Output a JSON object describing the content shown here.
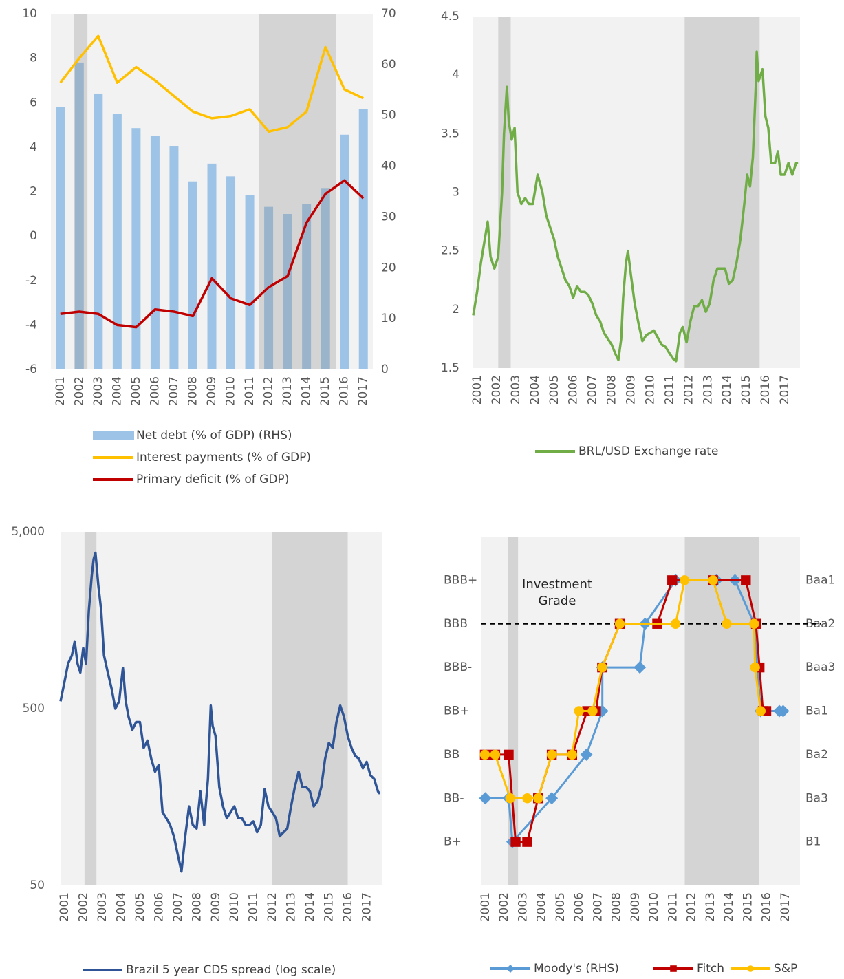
{
  "chart_data": [
    {
      "type": "combo",
      "categories": [
        "2001",
        "2002",
        "2003",
        "2004",
        "2005",
        "2006",
        "2007",
        "2008",
        "2009",
        "2010",
        "2011",
        "2012",
        "2013",
        "2014",
        "2015",
        "2016",
        "2017"
      ],
      "series": [
        {
          "name": "Net debt (% of GDP) (RHS)",
          "type": "bar",
          "axis": "y2",
          "color": "#9dc3e6",
          "values": [
            51.6,
            60.4,
            54.3,
            50.3,
            47.5,
            46,
            44,
            37,
            40.5,
            38,
            34.3,
            32,
            30.6,
            32.6,
            35.7,
            46.2,
            51.2
          ]
        },
        {
          "name": "Interest payments (% of GDP)",
          "type": "line",
          "color": "#ffc000",
          "values": [
            6.9,
            8.0,
            9.0,
            6.9,
            7.6,
            7.0,
            6.3,
            5.6,
            5.3,
            5.4,
            5.7,
            4.7,
            4.9,
            5.6,
            8.5,
            6.6,
            6.2
          ]
        },
        {
          "name": "Primary deficit (% of GDP)",
          "type": "line",
          "color": "#c00000",
          "values": [
            -3.5,
            -3.4,
            -3.5,
            -4.0,
            -4.1,
            -3.3,
            -3.4,
            -3.6,
            -1.9,
            -2.8,
            -3.1,
            -2.3,
            -1.8,
            0.6,
            1.9,
            2.5,
            1.7
          ]
        }
      ],
      "ylim": [
        -6,
        10
      ],
      "yticks": [
        -6,
        -4,
        -2,
        0,
        2,
        4,
        6,
        8,
        10
      ],
      "y2lim": [
        0,
        70
      ],
      "y2ticks": [
        0,
        10,
        20,
        30,
        40,
        50,
        60,
        70
      ],
      "shaded": [
        [
          2001.7,
          2002.43
        ],
        [
          2011.5,
          2015.55
        ]
      ]
    },
    {
      "type": "line",
      "x": [
        2001,
        2001.2,
        2001.4,
        2001.6,
        2001.75,
        2001.9,
        2002.1,
        2002.3,
        2002.5,
        2002.6,
        2002.75,
        2002.85,
        2003,
        2003.15,
        2003.3,
        2003.5,
        2003.7,
        2003.9,
        2004.1,
        2004.35,
        2004.6,
        2004.8,
        2005,
        2005.2,
        2005.4,
        2005.6,
        2005.8,
        2006,
        2006.2,
        2006.4,
        2006.6,
        2006.8,
        2007,
        2007.2,
        2007.4,
        2007.6,
        2007.8,
        2008,
        2008.2,
        2008.4,
        2008.55,
        2008.7,
        2008.8,
        2008.95,
        2009.05,
        2009.2,
        2009.4,
        2009.6,
        2009.8,
        2010,
        2010.2,
        2010.4,
        2010.6,
        2010.8,
        2011,
        2011.2,
        2011.4,
        2011.55,
        2011.75,
        2011.9,
        2012.1,
        2012.3,
        2012.5,
        2012.7,
        2012.9,
        2013.1,
        2013.3,
        2013.5,
        2013.7,
        2013.9,
        2014.1,
        2014.3,
        2014.5,
        2014.7,
        2014.9,
        2015.1,
        2015.25,
        2015.4,
        2015.55,
        2015.7,
        2015.75,
        2015.85,
        2015.95,
        2016.05,
        2016.2,
        2016.35,
        2016.5,
        2016.7,
        2016.85,
        2017,
        2017.2,
        2017.4,
        2017.6,
        2017.8,
        2017.9
      ],
      "series": [
        {
          "name": "BRL/USD Exchange rate",
          "color": "#70ad47",
          "values": [
            1.95,
            2.15,
            2.4,
            2.6,
            2.75,
            2.45,
            2.35,
            2.45,
            3.0,
            3.5,
            3.9,
            3.6,
            3.45,
            3.55,
            3.0,
            2.9,
            2.95,
            2.9,
            2.9,
            3.15,
            3.0,
            2.8,
            2.7,
            2.6,
            2.45,
            2.35,
            2.25,
            2.2,
            2.1,
            2.2,
            2.15,
            2.15,
            2.12,
            2.05,
            1.95,
            1.9,
            1.8,
            1.75,
            1.7,
            1.62,
            1.57,
            1.75,
            2.1,
            2.4,
            2.5,
            2.3,
            2.05,
            1.88,
            1.73,
            1.78,
            1.8,
            1.82,
            1.76,
            1.7,
            1.68,
            1.63,
            1.58,
            1.56,
            1.8,
            1.85,
            1.72,
            1.9,
            2.03,
            2.03,
            2.08,
            1.98,
            2.05,
            2.25,
            2.35,
            2.35,
            2.35,
            2.22,
            2.25,
            2.4,
            2.6,
            2.9,
            3.15,
            3.05,
            3.3,
            3.9,
            4.2,
            3.95,
            4.0,
            4.05,
            3.65,
            3.55,
            3.25,
            3.25,
            3.35,
            3.15,
            3.15,
            3.25,
            3.15,
            3.25,
            3.25
          ]
        }
      ],
      "xlim": [
        2001,
        2018
      ],
      "xticks": [
        2001,
        2002,
        2003,
        2004,
        2005,
        2006,
        2007,
        2008,
        2009,
        2010,
        2011,
        2012,
        2013,
        2014,
        2015,
        2016,
        2017
      ],
      "ylim": [
        1.5,
        4.5
      ],
      "yticks": [
        1.5,
        2,
        2.5,
        3,
        3.5,
        4,
        4.5
      ],
      "shaded": [
        [
          2002.3,
          2002.95
        ],
        [
          2012.0,
          2015.9
        ]
      ]
    },
    {
      "type": "line",
      "log_scale": true,
      "x": [
        2001,
        2001.2,
        2001.4,
        2001.6,
        2001.75,
        2001.9,
        2002.05,
        2002.2,
        2002.35,
        2002.5,
        2002.65,
        2002.75,
        2002.85,
        2003,
        2003.15,
        2003.3,
        2003.5,
        2003.7,
        2003.9,
        2004.1,
        2004.3,
        2004.45,
        2004.6,
        2004.8,
        2005,
        2005.2,
        2005.4,
        2005.6,
        2005.8,
        2006,
        2006.2,
        2006.4,
        2006.6,
        2006.8,
        2007,
        2007.2,
        2007.4,
        2007.6,
        2007.8,
        2008,
        2008.2,
        2008.4,
        2008.6,
        2008.8,
        2008.95,
        2009.05,
        2009.2,
        2009.4,
        2009.6,
        2009.8,
        2010,
        2010.2,
        2010.4,
        2010.6,
        2010.8,
        2011,
        2011.2,
        2011.4,
        2011.6,
        2011.8,
        2012,
        2012.2,
        2012.4,
        2012.6,
        2012.8,
        2013,
        2013.2,
        2013.4,
        2013.6,
        2013.8,
        2014,
        2014.2,
        2014.4,
        2014.6,
        2014.8,
        2015,
        2015.2,
        2015.4,
        2015.6,
        2015.8,
        2016,
        2016.2,
        2016.4,
        2016.6,
        2016.8,
        2017,
        2017.2,
        2017.4,
        2017.6,
        2017.8,
        2017.9
      ],
      "series": [
        {
          "name": "Brazil 5 year CDS spread (log scale)",
          "color": "#2f5597",
          "values": [
            550,
            700,
            900,
            1000,
            1200,
            900,
            800,
            1100,
            900,
            1800,
            2800,
            3500,
            3800,
            2500,
            1800,
            1000,
            800,
            650,
            500,
            550,
            850,
            550,
            450,
            380,
            420,
            420,
            300,
            330,
            260,
            220,
            240,
            130,
            120,
            110,
            95,
            75,
            60,
            95,
            140,
            110,
            105,
            170,
            110,
            200,
            520,
            400,
            350,
            180,
            140,
            120,
            130,
            140,
            120,
            120,
            110,
            110,
            115,
            100,
            110,
            175,
            140,
            130,
            120,
            95,
            100,
            105,
            140,
            180,
            220,
            180,
            180,
            170,
            140,
            150,
            180,
            260,
            320,
            300,
            420,
            520,
            450,
            350,
            300,
            270,
            260,
            230,
            250,
            210,
            200,
            170,
            165
          ]
        }
      ],
      "xlim": [
        2001,
        2018
      ],
      "xticks": [
        2001,
        2002,
        2003,
        2004,
        2005,
        2006,
        2007,
        2008,
        2009,
        2010,
        2011,
        2012,
        2013,
        2014,
        2015,
        2016,
        2017
      ],
      "ylim": [
        50,
        5000
      ],
      "yticks": [
        50,
        500,
        {
          "value": 5000,
          "label": "5,000"
        }
      ],
      "shaded": [
        [
          2002.27,
          2002.9
        ],
        [
          2012.2,
          2016.2
        ]
      ]
    },
    {
      "type": "line",
      "markers": true,
      "series": [
        {
          "name": "Moody's (RHS)",
          "axis": "y2",
          "color": "#5b9bd5",
          "marker": "diamond",
          "x": [
            2001.2,
            2002.45,
            2002.65,
            2004.75,
            2006.6,
            2007.45,
            2007.45,
            2009.45,
            2009.73,
            2011.36,
            2013.55,
            2014.53,
            2015.55,
            2015.9,
            2016.9,
            2017.1
          ],
          "values": [
            2,
            2,
            1,
            2,
            3,
            4,
            5,
            5,
            6,
            7,
            7,
            7,
            6,
            4,
            4,
            4
          ]
        },
        {
          "name": "Fitch",
          "color": "#c00000",
          "marker": "square",
          "x": [
            2001.18,
            2001.73,
            2002.45,
            2002.82,
            2003.44,
            2004.02,
            2004.75,
            2005.84,
            2006.64,
            2007.11,
            2007.44,
            2008.38,
            2010.38,
            2011.18,
            2013.36,
            2015.11,
            2015.65,
            2015.84,
            2016.02,
            2016.2
          ],
          "values": [
            3,
            3,
            3,
            1,
            1,
            2,
            3,
            3,
            4,
            4,
            5,
            6,
            6,
            7,
            7,
            7,
            6,
            5,
            4,
            4
          ]
        },
        {
          "name": "S&P",
          "color": "#ffc000",
          "marker": "circle",
          "x": [
            2001.18,
            2001.73,
            2002.53,
            2003.44,
            2004.02,
            2004.75,
            2005.84,
            2006.2,
            2006.93,
            2007.44,
            2008.38,
            2011.36,
            2011.84,
            2013.36,
            2014.09,
            2015.55,
            2015.6,
            2015.9
          ],
          "values": [
            3,
            3,
            2,
            2,
            2,
            3,
            3,
            4,
            4,
            5,
            6,
            6,
            7,
            7,
            6,
            6,
            5,
            4
          ]
        }
      ],
      "xlim": [
        2001,
        2018
      ],
      "xticks": [
        2001,
        2002,
        2003,
        2004,
        2005,
        2006,
        2007,
        2008,
        2009,
        2010,
        2011,
        2012,
        2013,
        2014,
        2015,
        2016,
        2017
      ],
      "ylim": [
        0,
        8
      ],
      "yticks": [
        {
          "value": 1,
          "label": "B+"
        },
        {
          "value": 2,
          "label": "BB-"
        },
        {
          "value": 3,
          "label": "BB"
        },
        {
          "value": 4,
          "label": "BB+"
        },
        {
          "value": 5,
          "label": "BBB-"
        },
        {
          "value": 6,
          "label": "BBB"
        },
        {
          "value": 7,
          "label": "BBB+"
        }
      ],
      "y2lim": [
        0,
        8
      ],
      "y2ticks": [
        {
          "value": 1,
          "label": "B1"
        },
        {
          "value": 2,
          "label": "Ba3"
        },
        {
          "value": 3,
          "label": "Ba2"
        },
        {
          "value": 4,
          "label": "Ba1"
        },
        {
          "value": 5,
          "label": "Baa3"
        },
        {
          "value": 6,
          "label": "Baa2"
        },
        {
          "value": 7,
          "label": "Baa1"
        }
      ],
      "reference_line": 6,
      "annotation": "Investment Grade",
      "shaded": [
        [
          2002.4,
          2002.95
        ],
        [
          2011.85,
          2015.8
        ]
      ]
    }
  ]
}
